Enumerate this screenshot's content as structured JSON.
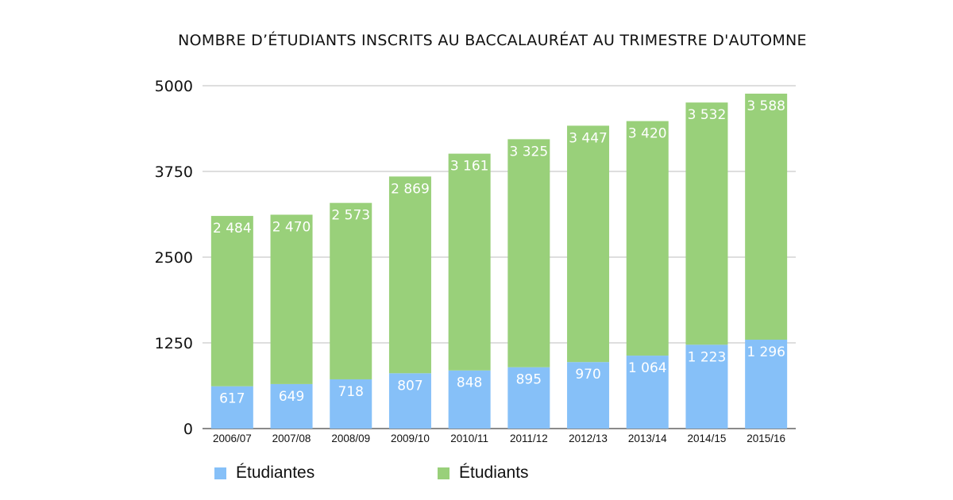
{
  "chart_data": {
    "type": "bar",
    "stacked": true,
    "title": "NOMBRE D’ÉTUDIANTS INSCRITS AU BACCALAURÉAT AU TRIMESTRE D'AUTOMNE",
    "xlabel": "",
    "ylabel": "",
    "ylim": [
      0,
      5000
    ],
    "yticks": [
      0,
      1250,
      2500,
      3750,
      5000
    ],
    "ytick_labels": [
      "0",
      "1250",
      "2500",
      "3750",
      "5000"
    ],
    "grid": true,
    "legend_position": "bottom",
    "categories": [
      "2006/07",
      "2007/08",
      "2008/09",
      "2009/10",
      "2010/11",
      "2011/12",
      "2012/13",
      "2013/14",
      "2014/15",
      "2015/16"
    ],
    "series": [
      {
        "name": "Étudiantes",
        "color": "#86c0f8",
        "values": [
          617,
          649,
          718,
          807,
          848,
          895,
          970,
          1064,
          1223,
          1296
        ],
        "labels": [
          "617",
          "649",
          "718",
          "807",
          "848",
          "895",
          "970",
          "1 064",
          "1 223",
          "1 296"
        ]
      },
      {
        "name": "Étudiants",
        "color": "#99d07a",
        "values": [
          2484,
          2470,
          2573,
          2869,
          3161,
          3325,
          3447,
          3420,
          3532,
          3588
        ],
        "labels": [
          "2 484",
          "2 470",
          "2 573",
          "2 869",
          "3 161",
          "3 325",
          "3 447",
          "3 420",
          "3 532",
          "3 588"
        ]
      }
    ]
  }
}
